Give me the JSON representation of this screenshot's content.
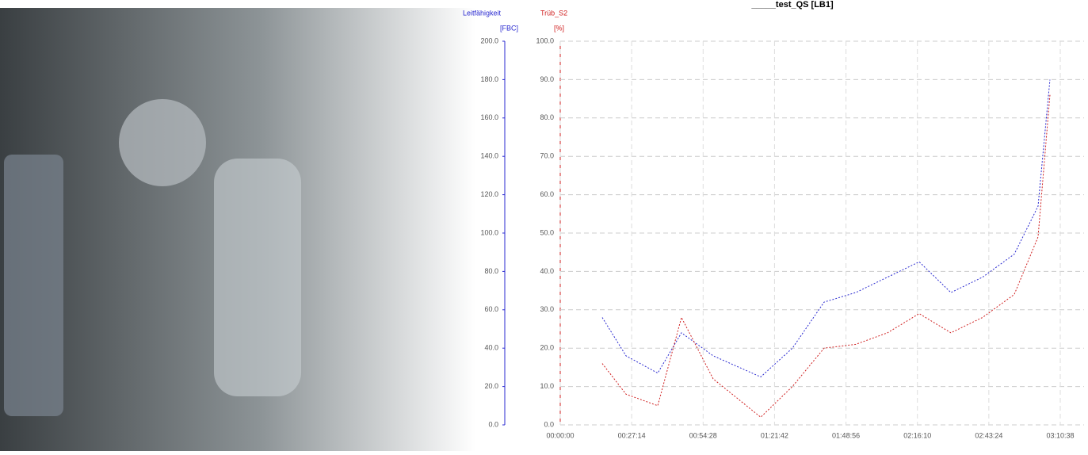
{
  "chart_data": {
    "type": "line",
    "title": "_____test_QS [LB1]",
    "xlim": [
      0,
      11438
    ],
    "xticks": [
      {
        "value": 0,
        "label": "00:00:00"
      },
      {
        "value": 1634,
        "label": "00:27:14"
      },
      {
        "value": 3268,
        "label": "00:54:28"
      },
      {
        "value": 4902,
        "label": "01:21:42"
      },
      {
        "value": 6536,
        "label": "01:48:56"
      },
      {
        "value": 8170,
        "label": "02:16:10"
      },
      {
        "value": 9804,
        "label": "02:43:24"
      },
      {
        "value": 11438,
        "label": "03:10:38"
      }
    ],
    "y_label": "[FBC]",
    "y2_label": "[%]",
    "ylim": [
      0,
      200
    ],
    "yticks": [
      {
        "value": 0,
        "label": "0.0"
      },
      {
        "value": 20,
        "label": "20.0"
      },
      {
        "value": 40,
        "label": "40.0"
      },
      {
        "value": 60,
        "label": "60.0"
      },
      {
        "value": 80,
        "label": "80.0"
      },
      {
        "value": 100,
        "label": "100.0"
      },
      {
        "value": 120,
        "label": "120.0"
      },
      {
        "value": 140,
        "label": "140.0"
      },
      {
        "value": 160,
        "label": "160.0"
      },
      {
        "value": 180,
        "label": "180.0"
      },
      {
        "value": 200,
        "label": "200.0"
      }
    ],
    "y2lim": [
      0,
      100
    ],
    "y2ticks": [
      {
        "value": 0,
        "label": "0.0"
      },
      {
        "value": 10,
        "label": "10.0"
      },
      {
        "value": 20,
        "label": "20.0"
      },
      {
        "value": 30,
        "label": "30.0"
      },
      {
        "value": 40,
        "label": "40.0"
      },
      {
        "value": 50,
        "label": "50.0"
      },
      {
        "value": 60,
        "label": "60.0"
      },
      {
        "value": 70,
        "label": "70.0"
      },
      {
        "value": 80,
        "label": "80.0"
      },
      {
        "value": 90,
        "label": "90.0"
      },
      {
        "value": 100,
        "label": "100.0"
      }
    ],
    "grid": true,
    "x": [
      961,
      1505,
      2230,
      2773,
      3498,
      4586,
      5311,
      6036,
      6761,
      7486,
      8211,
      8936,
      9661,
      10386,
      10930,
      11202
    ],
    "series": [
      {
        "name": "Leitfähigkeit",
        "color": "#2a2ad0",
        "values": [
          56,
          36,
          27,
          48,
          36,
          25,
          40,
          64,
          69,
          77,
          85,
          69,
          77,
          89,
          114,
          180
        ]
      },
      {
        "name": "Trüb_S2",
        "color": "#d02020",
        "axis": "y2",
        "values": [
          16,
          8,
          5,
          28,
          12,
          2,
          10,
          20,
          21,
          24,
          29,
          24,
          28,
          34,
          49,
          86
        ]
      }
    ]
  }
}
